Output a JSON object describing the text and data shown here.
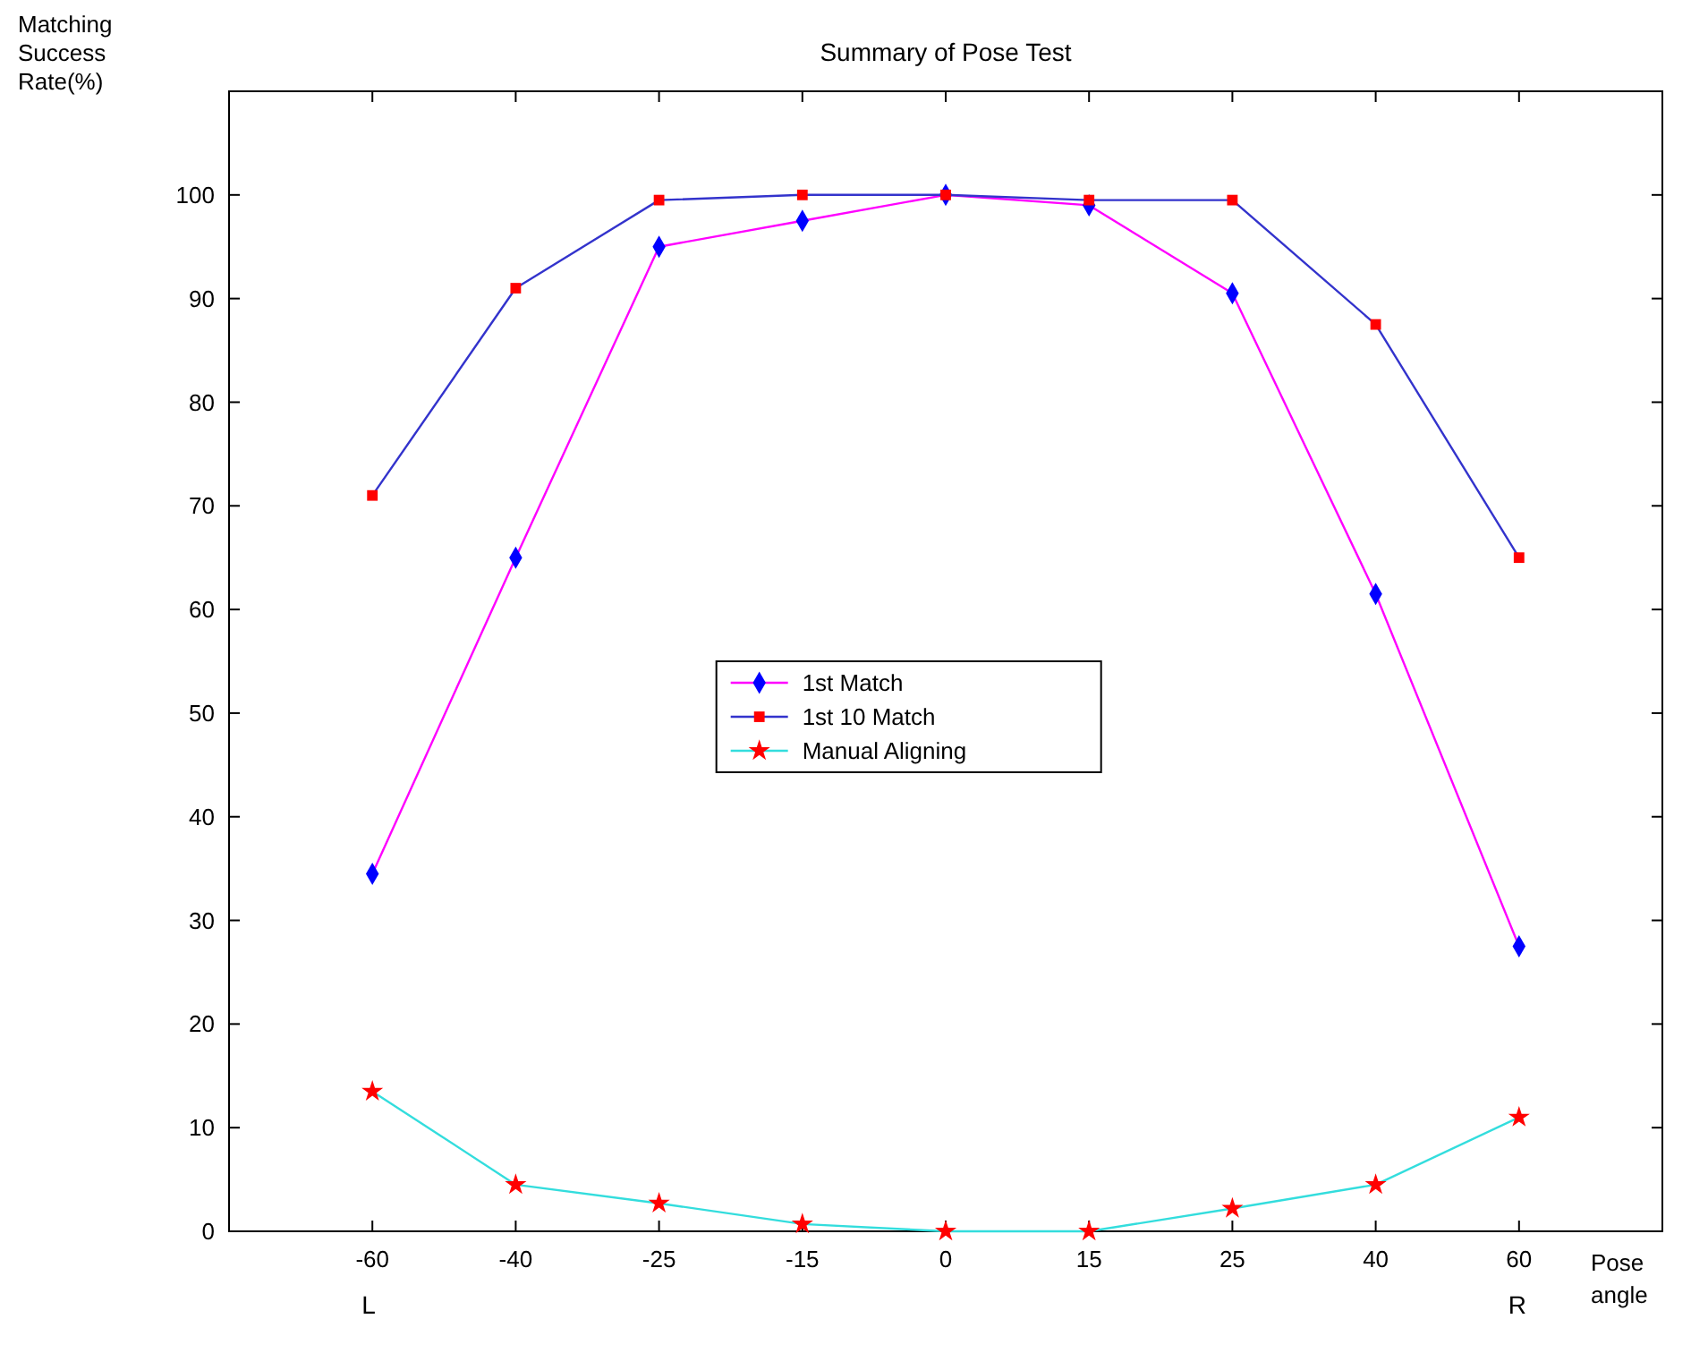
{
  "chart_data": {
    "type": "line",
    "title": "Summary of Pose Test",
    "ylabel": "Matching Success Rate(%)",
    "xlabel": "Pose angle",
    "categories": [
      "-60",
      "-40",
      "-25",
      "-15",
      "0",
      "15",
      "25",
      "40",
      "60"
    ],
    "ylim": [
      0,
      110
    ],
    "yticks": [
      0,
      10,
      20,
      30,
      40,
      50,
      60,
      70,
      80,
      90,
      100
    ],
    "series": [
      {
        "name": "1st Match",
        "color": "#ff00ff",
        "marker": "diamond",
        "colors": [
          "#0000ff",
          "#0000ff",
          "#0000ff",
          "#0000ff",
          "#0000ff",
          "#0000ff",
          "#0000ff",
          "#0000ff",
          "#0000ff"
        ],
        "values": [
          34.5,
          65,
          95,
          97.5,
          100,
          99,
          90.5,
          61.5,
          27.5
        ]
      },
      {
        "name": "1st 10 Match",
        "color": "#3333cc",
        "marker": "square",
        "colors": [
          "#ff0000",
          "#ff0000",
          "#ff0000",
          "#ff0000",
          "#ff0000",
          "#ff0000",
          "#ff0000",
          "#ff0000",
          "#ff0000"
        ],
        "values": [
          71,
          91,
          99.5,
          100,
          100,
          99.5,
          99.5,
          87.5,
          65
        ]
      },
      {
        "name": "Manual Aligning",
        "color": "#33dddd",
        "marker": "star",
        "colors": [
          "#ff0000",
          "#ff0000",
          "#ff0000",
          "#ff0000",
          "#ff0000",
          "#ff0000",
          "#ff0000",
          "#ff0000",
          "#ff0000"
        ],
        "values": [
          13.5,
          4.5,
          2.7,
          0.7,
          0,
          0,
          2.2,
          4.5,
          11
        ]
      }
    ],
    "annotations": [
      "L",
      "R"
    ],
    "legend": "center",
    "grid": false
  }
}
